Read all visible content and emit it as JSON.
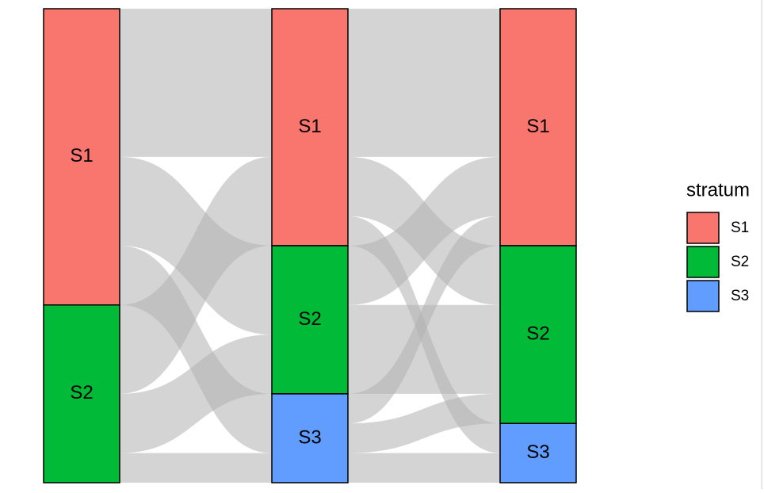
{
  "chart_data": {
    "type": "alluvial",
    "legend_title": "stratum",
    "series": [
      {
        "name": "S1",
        "color": "#F8766D"
      },
      {
        "name": "S2",
        "color": "#00BA38"
      },
      {
        "name": "S3",
        "color": "#619CFF"
      }
    ],
    "axes": [
      {
        "strata": [
          {
            "name": "S1",
            "value": 10
          },
          {
            "name": "S2",
            "value": 6
          }
        ]
      },
      {
        "strata": [
          {
            "name": "S1",
            "value": 8
          },
          {
            "name": "S2",
            "value": 5
          },
          {
            "name": "S3",
            "value": 3
          }
        ]
      },
      {
        "strata": [
          {
            "name": "S1",
            "value": 8
          },
          {
            "name": "S2",
            "value": 6
          },
          {
            "name": "S3",
            "value": 2
          }
        ]
      }
    ],
    "flows": [
      [
        [
          5,
          3,
          2
        ],
        [
          3,
          2,
          1
        ]
      ],
      [
        [
          5,
          2,
          1
        ],
        [
          2,
          3,
          0
        ],
        [
          1,
          1,
          1
        ]
      ]
    ],
    "flow_color": "#b0b0b0"
  }
}
